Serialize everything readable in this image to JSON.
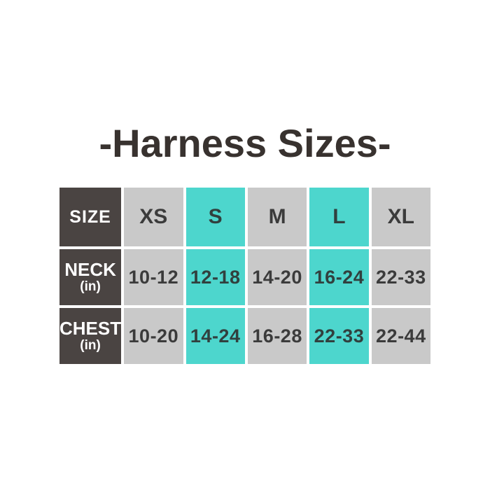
{
  "title": "-Harness Sizes-",
  "colors": {
    "background": "#ffffff",
    "dark_cell": "#4a4442",
    "gray_cell": "#c9c9c9",
    "teal_cell": "#4dd6cd",
    "title_text": "#38322f",
    "light_text": "#ffffff",
    "dark_text": "#3b3b3b"
  },
  "table": {
    "columns": [
      "SIZE",
      "XS",
      "S",
      "M",
      "L",
      "XL"
    ],
    "highlight_indexes": [
      2,
      4
    ],
    "rows": [
      {
        "label": "NECK",
        "unit": "(in)",
        "values": [
          "10-12",
          "12-18",
          "14-20",
          "16-24",
          "22-33"
        ]
      },
      {
        "label": "CHEST",
        "unit": "(in)",
        "values": [
          "10-20",
          "14-24",
          "16-28",
          "22-33",
          "22-44"
        ]
      }
    ]
  },
  "chart_data": {
    "type": "table",
    "title": "-Harness Sizes-",
    "columns": [
      "SIZE",
      "XS",
      "S",
      "M",
      "L",
      "XL"
    ],
    "rows": [
      [
        "NECK (in)",
        "10-12",
        "12-18",
        "14-20",
        "16-24",
        "22-33"
      ],
      [
        "CHEST (in)",
        "10-20",
        "14-24",
        "16-28",
        "22-33",
        "22-44"
      ]
    ],
    "highlighted_columns": [
      "S",
      "L"
    ],
    "legend_position": "none",
    "grid": false
  }
}
